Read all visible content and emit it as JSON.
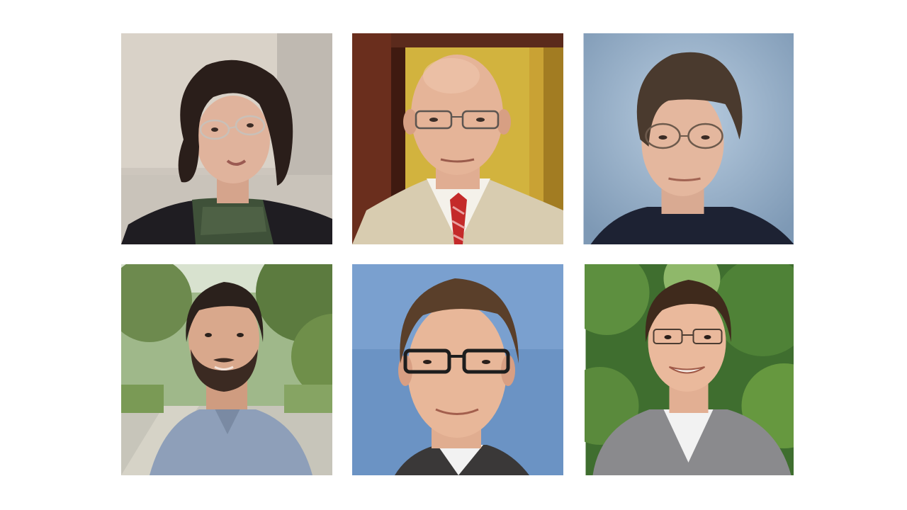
{
  "grid": {
    "rows": 2,
    "columns": 3,
    "photos": [
      {
        "subject": "woman-glasses-scarf-portrait",
        "background": "beige-interior"
      },
      {
        "subject": "bald-man-glasses-suit-red-tie-portrait",
        "background": "yellow-doorway"
      },
      {
        "subject": "man-brown-hair-glasses-portrait",
        "background": "blue-studio"
      },
      {
        "subject": "bearded-man-blue-shirt-portrait",
        "background": "green-park-path"
      },
      {
        "subject": "man-dark-glasses-portrait",
        "background": "solid-blue"
      },
      {
        "subject": "young-man-glasses-smiling-portrait",
        "background": "green-foliage"
      }
    ]
  },
  "colors": {
    "page_background": "#ffffff"
  }
}
